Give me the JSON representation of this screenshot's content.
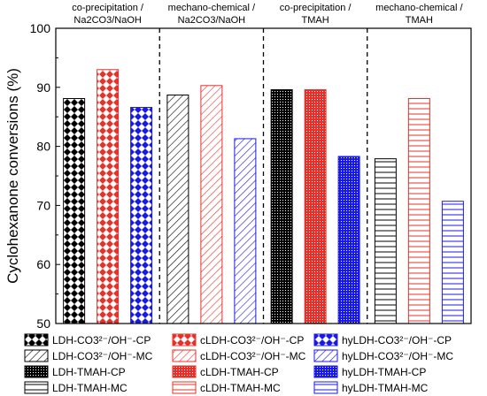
{
  "chart_data": {
    "type": "bar",
    "ylabel": "Cyclohexanone conversions (%)",
    "ylim": [
      50,
      100
    ],
    "yticks": [
      50,
      60,
      70,
      80,
      90,
      100
    ],
    "groups": [
      {
        "label_line1": "co-precipitation /",
        "label_line2": "Na2CO3/NaOH"
      },
      {
        "label_line1": "mechano-chemical /",
        "label_line2": "Na2CO3/NaOH"
      },
      {
        "label_line1": "co-precipitation /",
        "label_line2": "TMAH"
      },
      {
        "label_line1": "mechano-chemical /",
        "label_line2": "TMAH"
      }
    ],
    "bars": [
      {
        "name": "LDH-CO3²⁻/OH⁻-CP",
        "group": 0,
        "value": 88.1,
        "color": "#000000",
        "pattern": "checker"
      },
      {
        "name": "cLDH-CO3²⁻/OH⁻-CP",
        "group": 0,
        "value": 93.0,
        "color": "#e8302a",
        "pattern": "checker"
      },
      {
        "name": "hyLDH-CO3²⁻/OH⁻-CP",
        "group": 0,
        "value": 86.6,
        "color": "#1a1ae6",
        "pattern": "checker"
      },
      {
        "name": "LDH-CO3²⁻/OH⁻-MC",
        "group": 1,
        "value": 88.7,
        "color": "#000000",
        "pattern": "diag"
      },
      {
        "name": "cLDH-CO3²⁻/OH⁻-MC",
        "group": 1,
        "value": 90.3,
        "color": "#e8302a",
        "pattern": "diag"
      },
      {
        "name": "hyLDH-CO3²⁻/OH⁻-MC",
        "group": 1,
        "value": 81.3,
        "color": "#1a1ae6",
        "pattern": "diag"
      },
      {
        "name": "LDH-TMAH-CP",
        "group": 2,
        "value": 89.6,
        "color": "#000000",
        "pattern": "dots"
      },
      {
        "name": "cLDH-TMAH-CP",
        "group": 2,
        "value": 89.6,
        "color": "#e8302a",
        "pattern": "dots"
      },
      {
        "name": "hyLDH-TMAH-CP",
        "group": 2,
        "value": 78.3,
        "color": "#1a1ae6",
        "pattern": "dots"
      },
      {
        "name": "LDH-TMAH-MC",
        "group": 3,
        "value": 77.9,
        "color": "#000000",
        "pattern": "hlines"
      },
      {
        "name": "cLDH-TMAH-MC",
        "group": 3,
        "value": 88.1,
        "color": "#e8302a",
        "pattern": "hlines"
      },
      {
        "name": "hyLDH-TMAH-MC",
        "group": 3,
        "value": 70.7,
        "color": "#1a1ae6",
        "pattern": "hlines"
      }
    ]
  }
}
